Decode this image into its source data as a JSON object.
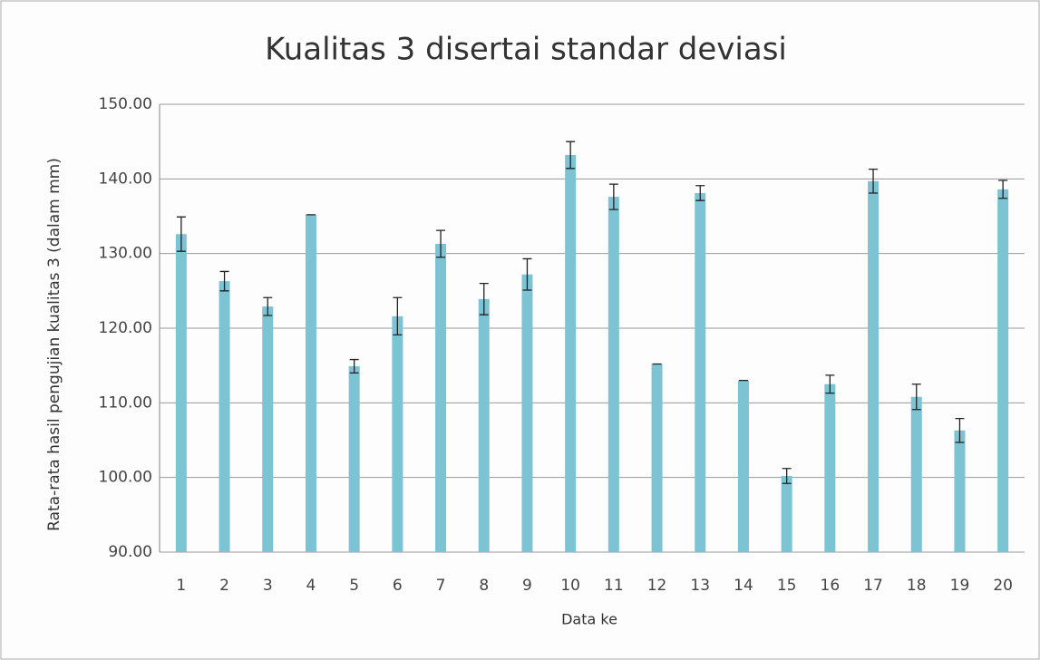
{
  "chart_data": {
    "type": "bar",
    "title": "Kualitas 3 disertai standar deviasi",
    "x_label": "Data ke",
    "y_label": "Rata-rata hasil pengujian kualitas 3 (dalam mm)",
    "categories": [
      "1",
      "2",
      "3",
      "4",
      "5",
      "6",
      "7",
      "8",
      "9",
      "10",
      "11",
      "12",
      "13",
      "14",
      "15",
      "16",
      "17",
      "18",
      "19",
      "20"
    ],
    "values": [
      132.6,
      126.3,
      122.9,
      135.2,
      114.9,
      121.6,
      131.3,
      123.9,
      127.2,
      143.2,
      137.6,
      115.2,
      138.1,
      113.0,
      100.2,
      112.5,
      139.7,
      110.8,
      106.3,
      138.6
    ],
    "errors": [
      2.3,
      1.3,
      1.2,
      0,
      0.9,
      2.5,
      1.8,
      2.1,
      2.1,
      1.8,
      1.7,
      0,
      1.0,
      0,
      1.0,
      1.2,
      1.6,
      1.7,
      1.6,
      1.2
    ],
    "color": "#7cc3d3",
    "ylim": [
      90,
      150
    ],
    "yticks": [
      {
        "value": 90,
        "label": "90.00"
      },
      {
        "value": 100,
        "label": "100.00"
      },
      {
        "value": 110,
        "label": "110.00"
      },
      {
        "value": 120,
        "label": "120.00"
      },
      {
        "value": 130,
        "label": "130.00"
      },
      {
        "value": 140,
        "label": "140.00"
      },
      {
        "value": 150,
        "label": "150.00"
      }
    ],
    "grid": true
  }
}
